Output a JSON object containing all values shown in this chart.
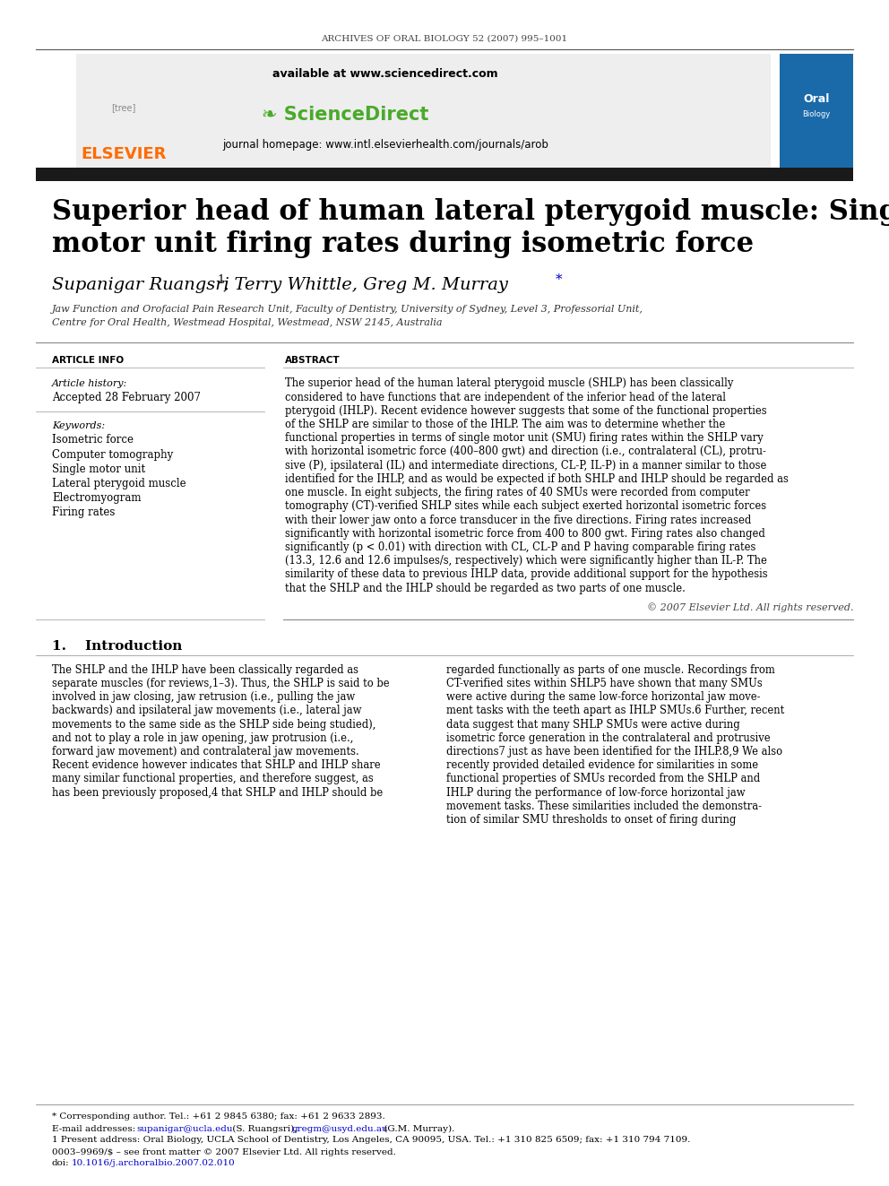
{
  "journal_header": "ARCHIVES OF ORAL BIOLOGY 52 (2007) 995–1001",
  "available_at": "available at www.sciencedirect.com",
  "journal_homepage": "journal homepage: www.intl.elsevierhealth.com/journals/arob",
  "title_line1": "Superior head of human lateral pterygoid muscle: Single",
  "title_line2": "motor unit firing rates during isometric force",
  "affil1": "Jaw Function and Orofacial Pain Research Unit, Faculty of Dentistry, University of Sydney, Level 3, Professorial Unit,",
  "affil2": "Centre for Oral Health, Westmead Hospital, Westmead, NSW 2145, Australia",
  "article_info_header": "ARTICLE INFO",
  "article_history_label": "Article history:",
  "article_history_value": "Accepted 28 February 2007",
  "keywords_label": "Keywords:",
  "keywords": [
    "Isometric force",
    "Computer tomography",
    "Single motor unit",
    "Lateral pterygoid muscle",
    "Electromyogram",
    "Firing rates"
  ],
  "abstract_header": "ABSTRACT",
  "copyright": "© 2007 Elsevier Ltd. All rights reserved.",
  "intro_header": "1.    Introduction",
  "footer_doi": "0003–9969/$ – see front matter © 2007 Elsevier Ltd. All rights reserved.",
  "footer_doi2": "doi:10.1016/j.archoralbio.2007.02.010",
  "elsevier_color": "#FF6B00",
  "dark_bar_color": "#1a1a1a",
  "link_color": "#0000CC",
  "bg_color": "#FFFFFF",
  "abstract_lines": [
    "The superior head of the human lateral pterygoid muscle (SHLP) has been classically",
    "considered to have functions that are independent of the inferior head of the lateral",
    "pterygoid (IHLP). Recent evidence however suggests that some of the functional properties",
    "of the SHLP are similar to those of the IHLP. The aim was to determine whether the",
    "functional properties in terms of single motor unit (SMU) firing rates within the SHLP vary",
    "with horizontal isometric force (400–800 gwt) and direction (i.e., contralateral (CL), protru-",
    "sive (P), ipsilateral (IL) and intermediate directions, CL-P, IL-P) in a manner similar to those",
    "identified for the IHLP, and as would be expected if both SHLP and IHLP should be regarded as",
    "one muscle. In eight subjects, the firing rates of 40 SMUs were recorded from computer",
    "tomography (CT)-verified SHLP sites while each subject exerted horizontal isometric forces",
    "with their lower jaw onto a force transducer in the five directions. Firing rates increased",
    "significantly with horizontal isometric force from 400 to 800 gwt. Firing rates also changed",
    "significantly (p < 0.01) with direction with CL, CL-P and P having comparable firing rates",
    "(13.3, 12.6 and 12.6 impulses/s, respectively) which were significantly higher than IL-P. The",
    "similarity of these data to previous IHLP data, provide additional support for the hypothesis",
    "that the SHLP and the IHLP should be regarded as two parts of one muscle."
  ],
  "intro_left_lines": [
    "The SHLP and the IHLP have been classically regarded as",
    "separate muscles (for reviews,1–3). Thus, the SHLP is said to be",
    "involved in jaw closing, jaw retrusion (i.e., pulling the jaw",
    "backwards) and ipsilateral jaw movements (i.e., lateral jaw",
    "movements to the same side as the SHLP side being studied),",
    "and not to play a role in jaw opening, jaw protrusion (i.e.,",
    "forward jaw movement) and contralateral jaw movements.",
    "Recent evidence however indicates that SHLP and IHLP share",
    "many similar functional properties, and therefore suggest, as",
    "has been previously proposed,4 that SHLP and IHLP should be"
  ],
  "intro_right_lines": [
    "regarded functionally as parts of one muscle. Recordings from",
    "CT-verified sites within SHLP5 have shown that many SMUs",
    "were active during the same low-force horizontal jaw move-",
    "ment tasks with the teeth apart as IHLP SMUs.6 Further, recent",
    "data suggest that many SHLP SMUs were active during",
    "isometric force generation in the contralateral and protrusive",
    "directions7 just as have been identified for the IHLP.8,9 We also",
    "recently provided detailed evidence for similarities in some",
    "functional properties of SMUs recorded from the SHLP and",
    "IHLP during the performance of low-force horizontal jaw",
    "movement tasks. These similarities included the demonstra-",
    "tion of similar SMU thresholds to onset of firing during"
  ]
}
